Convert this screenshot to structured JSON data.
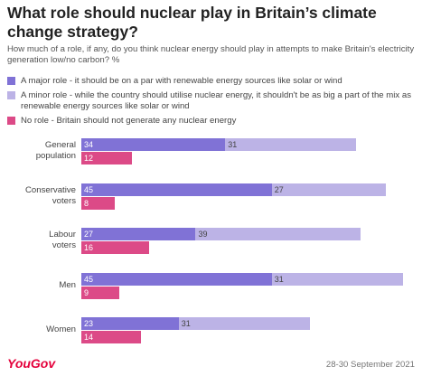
{
  "chart_data": {
    "type": "bar",
    "title": "What role should nuclear play in Britain’s climate change strategy?",
    "subtitle": "How much of a role, if any, do you think nuclear energy should play in attempts to make Britain's electricity generation low/no carbon? %",
    "categories": [
      "General population",
      "Conservative voters",
      "Labour voters",
      "Men",
      "Women"
    ],
    "series": [
      {
        "name": "A major role - it should be on a par with renewable energy sources like solar or wind",
        "color": "#8072d6",
        "values": [
          34,
          45,
          27,
          45,
          23
        ]
      },
      {
        "name": "A minor role - while the country should utilise nuclear energy, it shouldn't be as big a part of the mix as renewable energy sources like solar or wind",
        "color": "#bcb3e6",
        "values": [
          31,
          27,
          39,
          31,
          31
        ]
      },
      {
        "name": "No role - Britain should not generate any nuclear energy",
        "color": "#dc4a87",
        "values": [
          12,
          8,
          16,
          9,
          14
        ]
      }
    ],
    "source": "YouGov",
    "date": "28-30 September 2021"
  }
}
